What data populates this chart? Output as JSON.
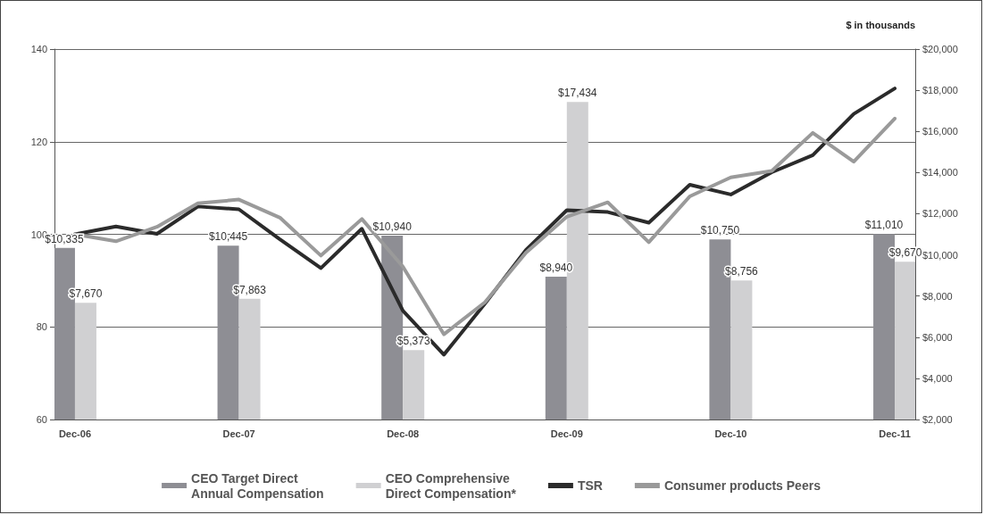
{
  "chart_data": {
    "type": "bar",
    "y2label": "$ in thousands",
    "categories": [
      "Dec-06",
      null,
      null,
      null,
      "Dec-07",
      null,
      null,
      null,
      "Dec-08",
      null,
      null,
      null,
      "Dec-09",
      null,
      null,
      null,
      "Dec-10",
      null,
      null,
      null,
      "Dec-11"
    ],
    "series": [
      {
        "name": "CEO Target Direct\nAnnual Compensation",
        "type": "bar",
        "axis": "y2",
        "color": "#8e8e94",
        "values": [
          10335,
          null,
          null,
          null,
          10445,
          null,
          null,
          null,
          10940,
          null,
          null,
          null,
          8940,
          null,
          null,
          null,
          10750,
          null,
          null,
          null,
          11010
        ],
        "value_labels": [
          "$10,335",
          null,
          null,
          null,
          "$10,445",
          null,
          null,
          null,
          "$10,940",
          null,
          null,
          null,
          "$8,940",
          null,
          null,
          null,
          "$10,750",
          null,
          null,
          null,
          "$11,010"
        ]
      },
      {
        "name": "CEO Comprehensive\nDirect Compensation*",
        "type": "bar",
        "axis": "y2",
        "color": "#d0d0d2",
        "values": [
          7670,
          null,
          null,
          null,
          7863,
          null,
          null,
          null,
          5373,
          null,
          null,
          null,
          17434,
          null,
          null,
          null,
          8756,
          null,
          null,
          null,
          9670
        ],
        "value_labels": [
          "$7,670",
          null,
          null,
          null,
          "$7,863",
          null,
          null,
          null,
          "$5,373",
          null,
          null,
          null,
          "$17,434",
          null,
          null,
          null,
          "$8,756",
          null,
          null,
          null,
          "$9,670"
        ]
      },
      {
        "name": "TSR",
        "type": "line",
        "color": "#2b2b2b",
        "values": [
          100,
          101.7,
          100.1,
          106,
          105.4,
          98.9,
          92.7,
          101.2,
          83.5,
          74,
          85,
          96.6,
          105.2,
          104.8,
          102.5,
          110.7,
          108.6,
          113.4,
          117.1,
          126,
          131.5
        ]
      },
      {
        "name": "Consumer products Peers",
        "type": "line",
        "color": "#9a9a9a",
        "values": [
          100,
          98.5,
          101.6,
          106.7,
          107.5,
          103.6,
          95.4,
          103.3,
          93,
          78.4,
          85.3,
          96,
          103.8,
          106.9,
          98.3,
          108.2,
          112.3,
          113.7,
          121.9,
          115.7,
          125
        ]
      }
    ],
    "ylim": [
      60,
      140
    ],
    "yticks": [
      60,
      80,
      100,
      120,
      140
    ],
    "y2lim": [
      2000,
      20000
    ],
    "y2ticks": [
      {
        "value": 2000,
        "label": "$2,000"
      },
      {
        "value": 4000,
        "label": "$4,000"
      },
      {
        "value": 6000,
        "label": "$6,000"
      },
      {
        "value": 8000,
        "label": "$8,000"
      },
      {
        "value": 10000,
        "label": "$10,000"
      },
      {
        "value": 12000,
        "label": "$12,000"
      },
      {
        "value": 14000,
        "label": "$14,000"
      },
      {
        "value": 16000,
        "label": "$16,000"
      },
      {
        "value": 18000,
        "label": "$18,000"
      },
      {
        "value": 20000,
        "label": "$20,000"
      }
    ],
    "grid": "y",
    "legend": "bottom",
    "marker": "none",
    "line_style": "solid"
  }
}
